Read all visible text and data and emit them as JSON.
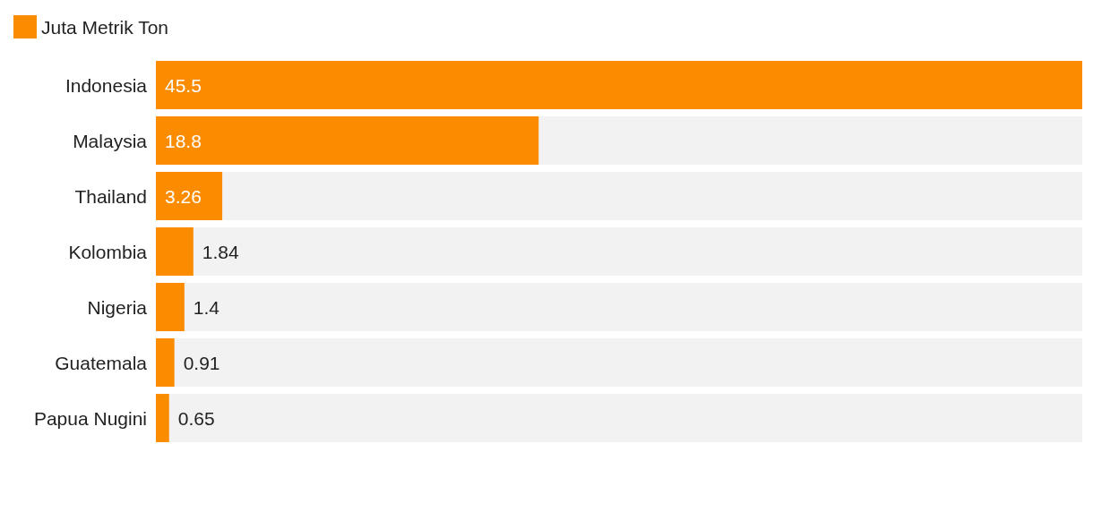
{
  "chart_data": {
    "type": "bar",
    "orientation": "horizontal",
    "categories": [
      "Indonesia",
      "Malaysia",
      "Thailand",
      "Kolombia",
      "Nigeria",
      "Guatemala",
      "Papua Nugini"
    ],
    "series": [
      {
        "name": "Juta Metrik Ton",
        "color": "#fb8c00",
        "values": [
          45.5,
          18.8,
          3.26,
          1.84,
          1.4,
          0.91,
          0.65
        ]
      }
    ],
    "data_labels": true,
    "legend": "top left"
  }
}
